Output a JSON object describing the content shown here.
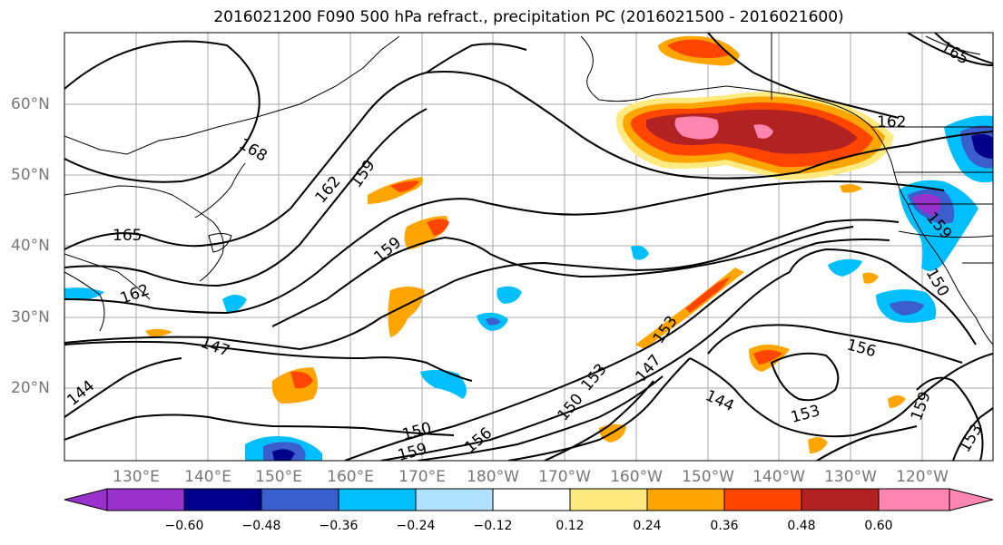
{
  "title": "2016021200 F090 500 hPa refract., precipitation PC (2016021500 - 2016021600)",
  "latitude_labels": [
    "60°N",
    "50°N",
    "40°N",
    "30°N",
    "20°N"
  ],
  "longitude_labels": [
    "130°E",
    "140°E",
    "150°E",
    "160°E",
    "170°E",
    "180°W",
    "170°W",
    "160°W",
    "150°W",
    "140°W",
    "130°W",
    "120°W"
  ],
  "contour_labels": [
    "168",
    "165",
    "162",
    "159",
    "162",
    "159",
    "165",
    "159",
    "147",
    "144",
    "150",
    "159",
    "156",
    "153",
    "150",
    "147",
    "153",
    "144",
    "153",
    "156",
    "159",
    "153",
    "150",
    "162"
  ],
  "colorbar": {
    "ticks": [
      "−0.60",
      "−0.48",
      "−0.36",
      "−0.24",
      "−0.12",
      "0.12",
      "0.24",
      "0.36",
      "0.48",
      "0.60"
    ],
    "colors": [
      "#9932cc",
      "#00008b",
      "#3a5fcd",
      "#00bfff",
      "#b0e2ff",
      "#ffffff",
      "#ffea80",
      "#ffa500",
      "#ff4500",
      "#b22222",
      "#ff86b0"
    ]
  },
  "palette": {
    "n_dark": "#9932cc",
    "n4": "#00008b",
    "n3": "#3a5fcd",
    "n2": "#00bfff",
    "n1": "#b0e2ff",
    "p1": "#ffea80",
    "p2": "#ffa500",
    "p3": "#ff4500",
    "p4": "#b22222",
    "p5": "#ff86b0",
    "grid": "#aaaaaa",
    "contour": "#000000",
    "coast": "#000000"
  }
}
